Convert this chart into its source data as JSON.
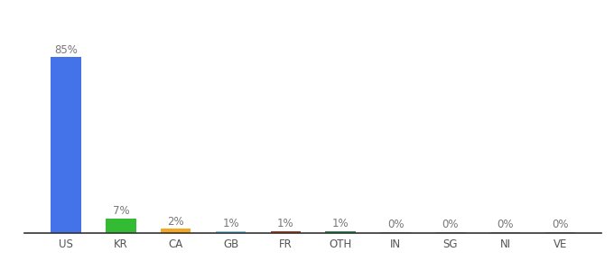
{
  "categories": [
    "US",
    "KR",
    "CA",
    "GB",
    "FR",
    "OTH",
    "IN",
    "SG",
    "NI",
    "VE"
  ],
  "values": [
    85,
    7,
    2,
    1,
    1,
    1,
    0.3,
    0.3,
    0.3,
    0.3
  ],
  "labels": [
    "85%",
    "7%",
    "2%",
    "1%",
    "1%",
    "1%",
    "0%",
    "0%",
    "0%",
    "0%"
  ],
  "bar_colors": [
    "#4472e8",
    "#33bb33",
    "#f5a623",
    "#7ec8e8",
    "#a04020",
    "#2e8b57",
    "#aaaaaa",
    "#aaaaaa",
    "#aaaaaa",
    "#aaaaaa"
  ],
  "background_color": "#ffffff",
  "ylim": [
    0,
    97
  ],
  "label_fontsize": 8.5,
  "tick_fontsize": 8.5,
  "bar_width": 0.55
}
